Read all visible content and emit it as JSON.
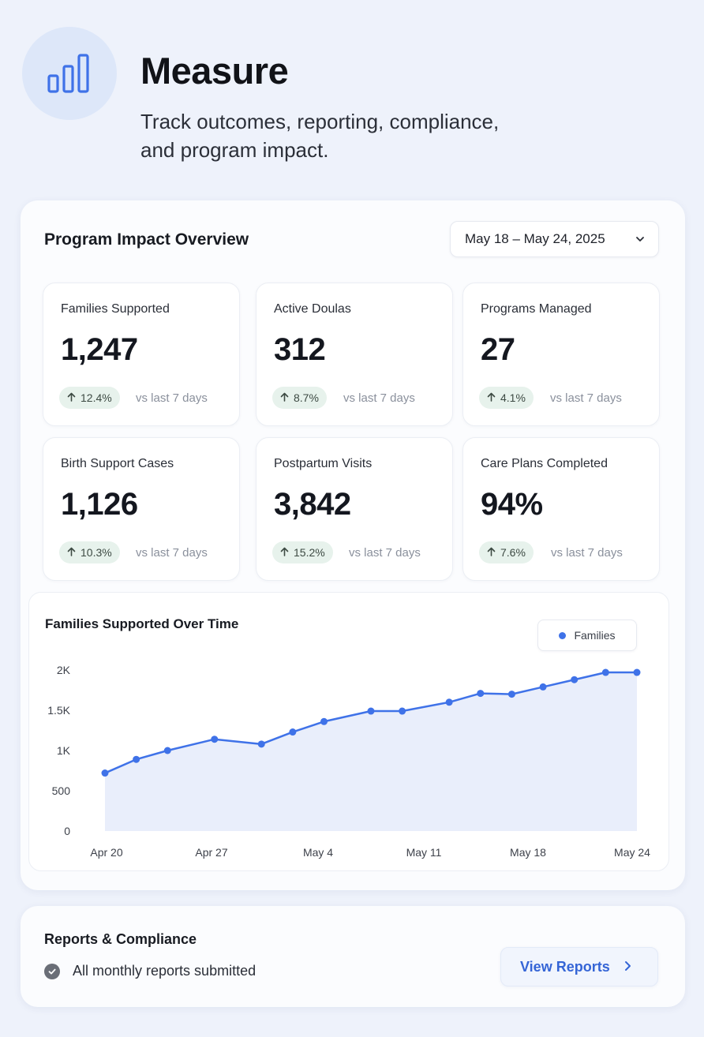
{
  "hero": {
    "icon": "bar-chart-icon",
    "title": "Measure",
    "subtitle_line1": "Track outcomes, reporting, compliance,",
    "subtitle_line2": "and program impact."
  },
  "overview": {
    "title": "Program Impact Overview",
    "date_range": "May  18 – May 24, 2025",
    "compare_label": "vs last 7 days",
    "stats": [
      {
        "label": "Families Supported",
        "value": "1,247",
        "delta": "12.4%"
      },
      {
        "label": "Active Doulas",
        "value": "312",
        "delta": "8.7%"
      },
      {
        "label": "Programs Managed",
        "value": "27",
        "delta": "4.1%"
      },
      {
        "label": "Birth Support Cases",
        "value": "1,126",
        "delta": "10.3%"
      },
      {
        "label": "Postpartum Visits",
        "value": "3,842",
        "delta": "15.2%"
      },
      {
        "label": "Care Plans Completed",
        "value": "94%",
        "delta": "7.6%"
      }
    ]
  },
  "chart_data": {
    "type": "area",
    "title": "Families Supported Over Time",
    "xlabel": "",
    "ylabel": "",
    "x_ticks": [
      "Apr 20",
      "Apr 27",
      "May 4",
      "May 11",
      "May 18",
      "May 24"
    ],
    "y_ticks": [
      "0",
      "500",
      "1K",
      "1.5K",
      "2K"
    ],
    "ylim": [
      0,
      2000
    ],
    "legend_position": "top-right",
    "grid": false,
    "series": [
      {
        "name": "Families",
        "color": "#3f72e8",
        "x": [
          "2025-04-20",
          "2025-04-22",
          "2025-04-24",
          "2025-04-27",
          "2025-04-30",
          "2025-05-02",
          "2025-05-04",
          "2025-05-07",
          "2025-05-09",
          "2025-05-12",
          "2025-05-14",
          "2025-05-16",
          "2025-05-18",
          "2025-05-20",
          "2025-05-22",
          "2025-05-24"
        ],
        "values": [
          720,
          890,
          1000,
          1140,
          1080,
          1230,
          1360,
          1490,
          1490,
          1600,
          1710,
          1700,
          1790,
          1880,
          1970,
          1970
        ]
      }
    ]
  },
  "reports": {
    "title": "Reports & Compliance",
    "status": "All monthly reports submitted",
    "button_label": "View Reports"
  }
}
